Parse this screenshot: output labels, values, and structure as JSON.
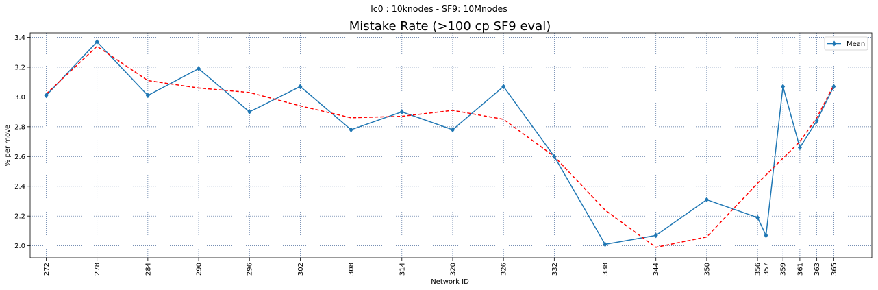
{
  "chart_data": {
    "type": "line",
    "suptitle": "lc0 : 10knodes - SF9: 10Mnodes",
    "title": "Mistake Rate (>100 cp SF9 eval)",
    "xlabel": "Network ID",
    "ylabel": "% per move",
    "x": [
      272,
      278,
      284,
      290,
      296,
      302,
      308,
      314,
      320,
      326,
      332,
      338,
      344,
      350,
      356,
      357,
      359,
      361,
      363,
      365
    ],
    "x_tick_labels": [
      "272",
      "278",
      "284",
      "290",
      "296",
      "302",
      "308",
      "314",
      "320",
      "326",
      "332",
      "338",
      "344",
      "350",
      "356",
      "357",
      "359",
      "361",
      "363",
      "365"
    ],
    "xlim": [
      270.1,
      369.5
    ],
    "ylim": [
      1.92,
      3.43
    ],
    "y_ticks": [
      2.0,
      2.2,
      2.4,
      2.6,
      2.8,
      3.0,
      3.2,
      3.4
    ],
    "y_tick_labels": [
      "2.0",
      "2.2",
      "2.4",
      "2.6",
      "2.8",
      "3.0",
      "3.2",
      "3.4"
    ],
    "grid": true,
    "legend_position": "top-right",
    "series": [
      {
        "name": "Mean",
        "color": "#1f77b4",
        "marker": "diamond",
        "style": "solid",
        "values": [
          3.01,
          3.37,
          3.01,
          3.19,
          2.9,
          3.07,
          2.78,
          2.9,
          2.78,
          3.07,
          2.6,
          2.01,
          2.07,
          2.31,
          2.19,
          2.07,
          3.07,
          2.66,
          2.84,
          3.07
        ]
      },
      {
        "color": "#ff0000",
        "style": "dashed",
        "x": [
          272,
          278,
          284,
          290,
          296,
          302,
          308,
          314,
          320,
          326,
          332,
          338,
          344,
          350,
          356,
          361,
          363,
          365
        ],
        "values": [
          3.02,
          3.34,
          3.11,
          3.06,
          3.03,
          2.94,
          2.86,
          2.87,
          2.91,
          2.85,
          2.6,
          2.24,
          1.99,
          2.06,
          2.42,
          2.7,
          2.86,
          3.08
        ]
      }
    ]
  }
}
